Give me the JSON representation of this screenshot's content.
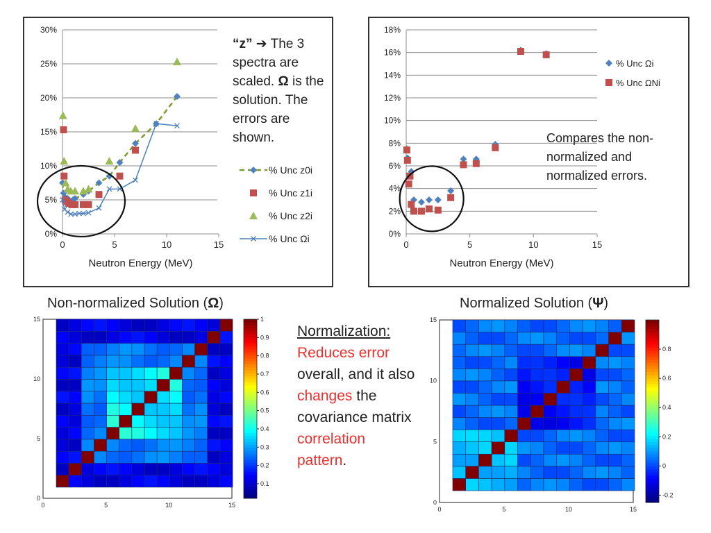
{
  "left_chart": {
    "xlabel": "Neutron Energy (MeV)",
    "x_ticks": [
      "0",
      "5",
      "10",
      "15"
    ],
    "y_ticks": [
      "0%",
      "5%",
      "10%",
      "15%",
      "20%",
      "25%",
      "30%"
    ],
    "legend": [
      "% Unc z0i",
      "% Unc z1i",
      "% Unc z2i",
      "% Unc Ωi"
    ],
    "note": {
      "q": "“z”",
      "arrow": "➔",
      "line": "The 3 spectra are scaled.",
      "omega": "Ω",
      "rest": "is the solution. The errors are shown."
    }
  },
  "right_chart": {
    "xlabel": "Neutron Energy (MeV)",
    "x_ticks": [
      "0",
      "5",
      "10",
      "15"
    ],
    "y_ticks": [
      "0%",
      "2%",
      "4%",
      "6%",
      "8%",
      "10%",
      "12%",
      "14%",
      "16%",
      "18%"
    ],
    "legend": [
      "% Unc Ωi",
      "% Unc ΩNi"
    ],
    "note": "Compares the non-normalized and normalized errors."
  },
  "chart_data": [
    {
      "type": "line",
      "xlabel": "Neutron Energy (MeV)",
      "ylabel": "",
      "xlim": [
        0,
        15
      ],
      "ylim": [
        0,
        30
      ],
      "series": [
        {
          "name": "% Unc z0i",
          "style": "dashed-line-diamond",
          "color": "#7a9a2c",
          "marker_color": "#4f81bd",
          "x": [
            0,
            0.1,
            0.25,
            0.5,
            1,
            1.2,
            2,
            2.5,
            3.5,
            4.5,
            5.5,
            7,
            9,
            11
          ],
          "y": [
            7.5,
            6.0,
            5.4,
            5.2,
            5.0,
            5.2,
            5.8,
            6.3,
            7.5,
            8.5,
            10.5,
            13.3,
            16.2,
            20.2
          ]
        },
        {
          "name": "% Unc z1i",
          "style": "square",
          "color": "#c0504d",
          "x": [
            0.1,
            0.15,
            0.25,
            0.4,
            0.6,
            0.9,
            1.2,
            2,
            2.5,
            3.5,
            5.5,
            7
          ],
          "y": [
            15.3,
            8.5,
            5.0,
            4.8,
            4.5,
            4.3,
            4.3,
            4.3,
            4.3,
            5.8,
            8.5,
            12.3
          ]
        },
        {
          "name": "% Unc z2i",
          "style": "triangle",
          "color": "#9bbb59",
          "x": [
            0.05,
            0.15,
            0.3,
            0.5,
            0.8,
            1.2,
            2,
            2.5,
            4.5,
            7,
            11
          ],
          "y": [
            17.4,
            10.7,
            7.5,
            6.6,
            6.3,
            6.3,
            6.3,
            6.6,
            10.7,
            15.5,
            25.3
          ]
        },
        {
          "name": "% Unc Ωi",
          "style": "line-x",
          "color": "#4f81bd",
          "x": [
            0,
            0.2,
            0.5,
            0.8,
            1.2,
            1.6,
            2,
            2.5,
            3.5,
            4.5,
            5.5,
            7,
            9,
            11
          ],
          "y": [
            5.0,
            3.6,
            3.2,
            2.9,
            2.9,
            3.0,
            3.0,
            3.1,
            3.8,
            6.6,
            6.6,
            7.9,
            16.2,
            15.9
          ]
        }
      ]
    },
    {
      "type": "scatter",
      "xlabel": "Neutron Energy (MeV)",
      "ylabel": "",
      "xlim": [
        0,
        15
      ],
      "ylim": [
        0,
        18
      ],
      "series": [
        {
          "name": "% Unc Ωi",
          "style": "diamond",
          "color": "#4f81bd",
          "x": [
            0.05,
            0.1,
            0.2,
            0.3,
            0.4,
            0.6,
            1.2,
            1.8,
            2.5,
            3.5,
            4.5,
            5.5,
            7,
            9,
            11
          ],
          "y": [
            7.5,
            6.7,
            4.4,
            5.2,
            5.5,
            3.0,
            2.8,
            3.0,
            3.0,
            3.8,
            6.6,
            6.6,
            7.9,
            16.2,
            15.9
          ]
        },
        {
          "name": "% Unc ΩNi",
          "style": "square",
          "color": "#c0504d",
          "x": [
            0.05,
            0.1,
            0.2,
            0.3,
            0.4,
            0.6,
            1.2,
            1.8,
            2.5,
            3.5,
            4.5,
            5.5,
            7,
            9,
            11
          ],
          "y": [
            7.4,
            6.5,
            4.4,
            5.1,
            2.6,
            2.0,
            2.0,
            2.2,
            2.1,
            3.2,
            6.1,
            6.2,
            7.6,
            16.1,
            15.8
          ]
        }
      ]
    },
    {
      "type": "heatmap",
      "title": "Non-normalized Solution (Ω)",
      "x_ticks": [
        "0",
        "5",
        "10",
        "15"
      ],
      "y_ticks": [
        "0",
        "5",
        "10",
        "15"
      ],
      "colorbar_ticks": [
        "1",
        "0.9",
        "0.8",
        "0.7",
        "0.6",
        "0.5",
        "0.4",
        "0.3",
        "0.2",
        "0.1"
      ],
      "colorbar_range": [
        0.02,
        1
      ],
      "size": 14,
      "pattern": "diagonal 1.0; central block (indices ~4-9) 0.35-0.45; edges 0.05-0.15"
    },
    {
      "type": "heatmap",
      "title": "Normalized Solution (Ψ)",
      "x_ticks": [
        "0",
        "5",
        "10",
        "15"
      ],
      "y_ticks": [
        "0",
        "5",
        "10",
        "15"
      ],
      "colorbar_ticks": [
        "0.8",
        "0.6",
        "0.4",
        "0.2",
        "0",
        "-0.2"
      ],
      "colorbar_range": [
        -0.25,
        1
      ],
      "size": 14,
      "pattern": "diagonal 1.0; off-diagonal mostly 0.05-0.2; central region near -0.05"
    }
  ],
  "heatmap_left": {
    "title_prefix": "Non-normalized Solution (",
    "symbol": "Ω",
    "title_suffix": ")"
  },
  "heatmap_right": {
    "title_prefix": "Normalized Solution (",
    "symbol": "Ψ",
    "title_suffix": ")"
  },
  "normalization": {
    "heading": "Normalization:",
    "p1": "Reduces error",
    "p2": "overall, and it also",
    "p3": "changes",
    "p4": "the covariance matrix",
    "p5": "correlation pattern",
    "p6": "."
  }
}
